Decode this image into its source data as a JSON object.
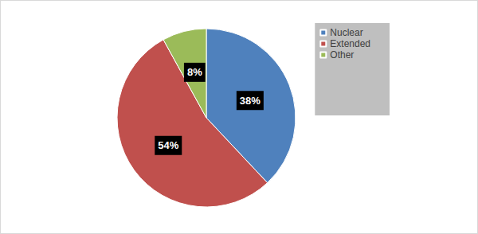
{
  "chart_data": {
    "type": "pie",
    "categories": [
      "Nuclear",
      "Extended",
      "Other"
    ],
    "values": [
      38,
      54,
      8
    ],
    "value_labels": [
      "38%",
      "54%",
      "8%"
    ],
    "colors": [
      "#4f81bd",
      "#c0504d",
      "#9bbb59"
    ],
    "data_labels": true,
    "legend": "top-right"
  }
}
